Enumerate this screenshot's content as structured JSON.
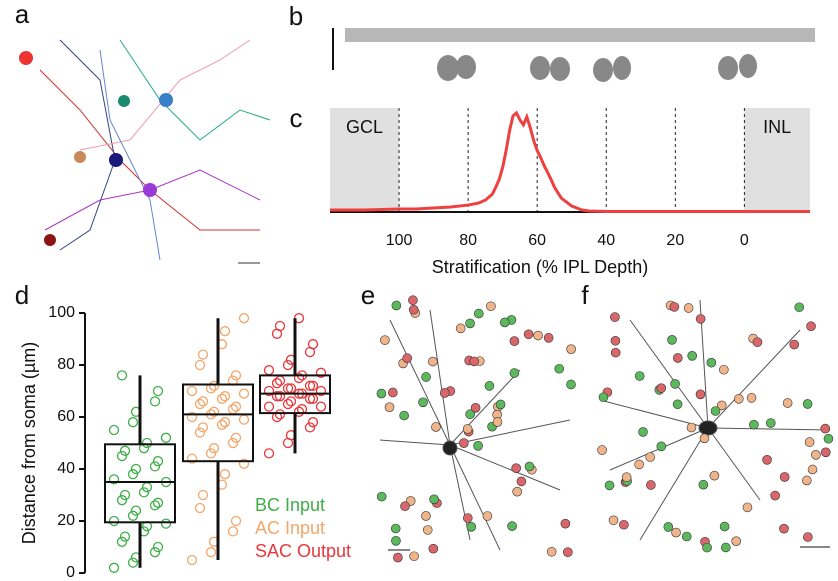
{
  "panel_labels": [
    "a",
    "b",
    "c",
    "d",
    "e",
    "f"
  ],
  "chart_data": [
    {
      "type": "line",
      "xlabel": "Stratification (% IPL Depth)",
      "x": [
        120,
        110,
        100,
        95,
        90,
        85,
        80,
        77,
        75,
        73,
        72,
        71,
        70,
        69,
        68,
        67,
        66,
        65,
        64,
        63,
        62,
        61,
        60,
        59,
        58,
        57,
        56,
        55,
        53,
        50,
        47,
        45,
        40,
        30,
        20,
        10,
        0,
        -10,
        -19
      ],
      "series": [
        {
          "color": "#ef4040",
          "values": [
            0.02,
            0.02,
            0.03,
            0.03,
            0.04,
            0.05,
            0.07,
            0.09,
            0.12,
            0.18,
            0.25,
            0.33,
            0.45,
            0.62,
            0.82,
            0.97,
            1.0,
            0.93,
            0.88,
            0.96,
            0.85,
            0.72,
            0.62,
            0.55,
            0.47,
            0.4,
            0.33,
            0.25,
            0.14,
            0.06,
            0.02,
            0.01,
            0.005,
            0.005,
            0.005,
            0.005,
            0.005,
            0.005,
            0.005
          ]
        }
      ],
      "xlim": [
        120,
        -19
      ],
      "ylim": [
        0,
        1.05
      ],
      "xticks": [
        100,
        80,
        60,
        40,
        20,
        0
      ],
      "grid": true,
      "shaded_regions": [
        {
          "label": "GCL",
          "range": [
            120,
            100
          ]
        },
        {
          "label": "INL",
          "range": [
            0,
            -19
          ]
        }
      ]
    },
    {
      "type": "box",
      "ylabel": "Distance from soma (µm)",
      "ylim": [
        0,
        100
      ],
      "yticks": [
        0,
        20,
        40,
        60,
        80,
        100
      ],
      "series": [
        {
          "name": "BC Input",
          "color": "#3fae49",
          "box": {
            "low": 2,
            "q1": 19.5,
            "median": 35,
            "q3": 49.5,
            "high": 76
          },
          "values": [
            2,
            4,
            6,
            8,
            10,
            12,
            14,
            16,
            18,
            19,
            20,
            22,
            24,
            26,
            27,
            28,
            30,
            31,
            33,
            35,
            36,
            38,
            40,
            41,
            43,
            45,
            47,
            48,
            50,
            52,
            55,
            58,
            62,
            66,
            70,
            76
          ]
        },
        {
          "name": "AC Input",
          "color": "#f4a66a",
          "box": {
            "low": 5,
            "q1": 43,
            "median": 61,
            "q3": 72.5,
            "high": 98
          },
          "values": [
            5,
            8,
            12,
            16,
            20,
            25,
            30,
            34,
            38,
            42,
            44,
            46,
            48,
            50,
            52,
            54,
            56,
            57,
            58,
            59,
            60,
            61,
            62,
            63,
            64,
            65,
            66,
            67,
            68,
            69,
            70,
            71,
            72,
            74,
            76,
            80,
            84,
            88,
            93,
            98
          ]
        },
        {
          "name": "SAC Output",
          "color": "#e8373c",
          "box": {
            "low": 46,
            "q1": 61.5,
            "median": 69,
            "q3": 76,
            "high": 98
          },
          "values": [
            46,
            50,
            53,
            56,
            58,
            60,
            61,
            62,
            63,
            64,
            64,
            65,
            66,
            67,
            67,
            68,
            68,
            69,
            69,
            70,
            70,
            71,
            71,
            72,
            72,
            73,
            74,
            75,
            76,
            77,
            78,
            80,
            82,
            85,
            88,
            92,
            95,
            98
          ]
        }
      ]
    }
  ]
}
